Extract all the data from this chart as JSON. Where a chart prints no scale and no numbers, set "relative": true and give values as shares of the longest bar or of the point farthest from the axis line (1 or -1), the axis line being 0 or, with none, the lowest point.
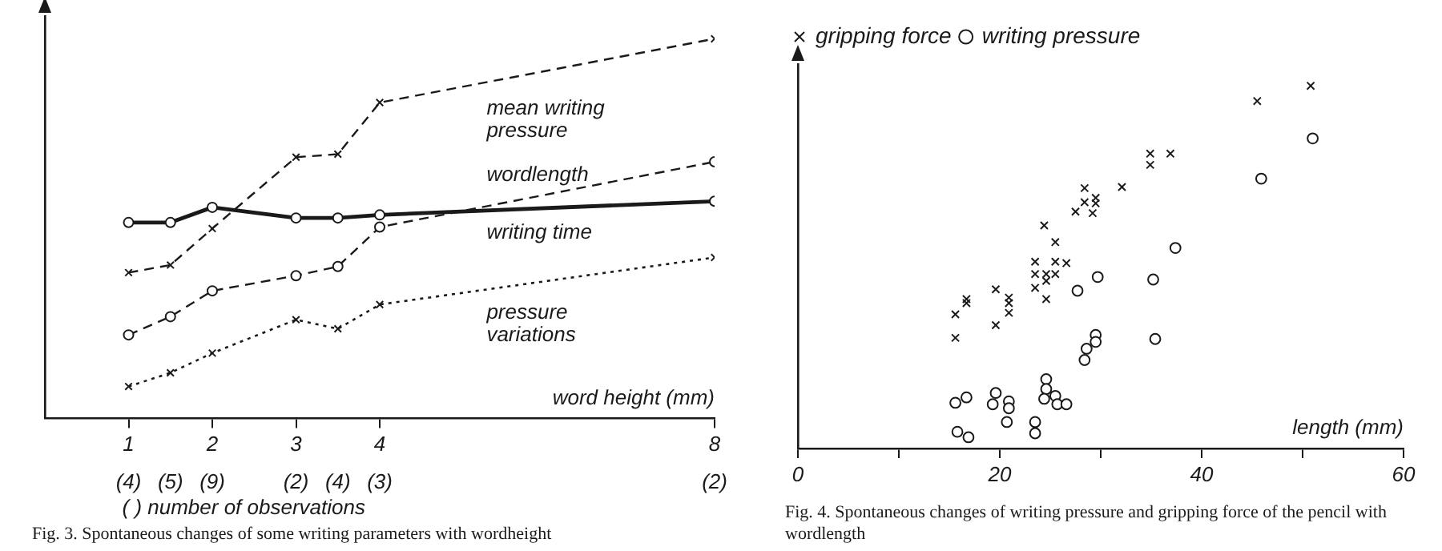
{
  "chart_data": [
    {
      "type": "line",
      "title": "Fig. 3. Spontaneous changes of some writing parameters with wordheight",
      "xlabel": "word height (mm)",
      "relative": true,
      "legend": false,
      "x": [
        1,
        1.5,
        2,
        3,
        3.5,
        4,
        8
      ],
      "xlim": [
        0,
        8
      ],
      "xticks": [
        1,
        2,
        3,
        4,
        8
      ],
      "series": [
        {
          "name": "mean writing pressure",
          "color": "#1a1a1a",
          "marker": "cross",
          "line_style": "dashed",
          "values": [
            0.384,
            0.404,
            0.5,
            0.688,
            0.696,
            0.832,
            1
          ]
        },
        {
          "name": "wordlength",
          "color": "#1a1a1a",
          "marker": "circle",
          "line_style": "dashed",
          "values": [
            0.22,
            0.268,
            0.336,
            0.376,
            0.4,
            0.504,
            0.676
          ]
        },
        {
          "name": "writing time",
          "color": "#1a1a1a",
          "marker": "circle",
          "line_style": "solid",
          "values": [
            0.516,
            0.516,
            0.556,
            0.528,
            0.528,
            0.536,
            0.572
          ]
        },
        {
          "name": "pressure variations",
          "color": "#1a1a1a",
          "marker": "cross",
          "line_style": "dotted",
          "values": [
            0.084,
            0.12,
            0.172,
            0.26,
            0.236,
            0.3,
            0.424
          ]
        }
      ],
      "annotations": [
        "(4)",
        "(5)",
        "(9)",
        "(2)",
        "(4)",
        "(3)",
        "(2)",
        "( ) number of observations"
      ]
    },
    {
      "type": "scatter",
      "title": "Fig. 4. Spontaneous changes of writing pressure and gripping force of the pencil with wordlength",
      "xlabel": "length (mm)",
      "relative": true,
      "legend": "top left",
      "xlim": [
        0,
        60
      ],
      "xticks": [
        0,
        {
          "value": 10,
          "label": null
        },
        20,
        {
          "value": 30,
          "label": null
        },
        40,
        {
          "value": 50,
          "label": null
        },
        60
      ],
      "series": [
        {
          "name": "gripping force",
          "color": "#1a1a1a",
          "marker": "cross",
          "x": [
            50.8,
            45.5,
            34.9,
            36.9,
            34.9,
            28.4,
            32.1,
            28.4,
            29.5,
            29.5,
            27.5,
            29.2,
            24.4,
            25.5,
            23.5,
            25.5,
            26.6,
            23.5,
            24.6,
            25.5,
            24.6,
            19.6,
            23.5,
            16.7,
            16.7,
            20.9,
            20.9,
            20.9,
            15.6,
            19.6,
            15.6,
            24.6
          ],
          "values": [
            1.0,
            0.958,
            0.813,
            0.813,
            0.782,
            0.718,
            0.721,
            0.679,
            0.691,
            0.676,
            0.653,
            0.649,
            0.615,
            0.569,
            0.515,
            0.515,
            0.511,
            0.481,
            0.481,
            0.481,
            0.462,
            0.439,
            0.443,
            0.412,
            0.401,
            0.416,
            0.401,
            0.374,
            0.37,
            0.34,
            0.305,
            0.412
          ]
        },
        {
          "name": "writing pressure",
          "color": "#1a1a1a",
          "marker": "circle",
          "x": [
            51.0,
            45.9,
            37.4,
            29.7,
            35.2,
            27.7,
            29.5,
            29.5,
            28.6,
            28.4,
            35.4,
            24.6,
            24.6,
            24.4,
            25.5,
            25.7,
            26.6,
            15.6,
            16.7,
            19.6,
            19.3,
            20.9,
            20.9,
            20.7,
            23.5,
            23.5,
            15.8,
            16.9
          ],
          "values": [
            0.855,
            0.744,
            0.553,
            0.473,
            0.466,
            0.435,
            0.313,
            0.294,
            0.275,
            0.244,
            0.302,
            0.191,
            0.164,
            0.137,
            0.145,
            0.122,
            0.122,
            0.126,
            0.141,
            0.153,
            0.122,
            0.13,
            0.111,
            0.073,
            0.073,
            0.042,
            0.046,
            0.031
          ]
        }
      ]
    }
  ]
}
